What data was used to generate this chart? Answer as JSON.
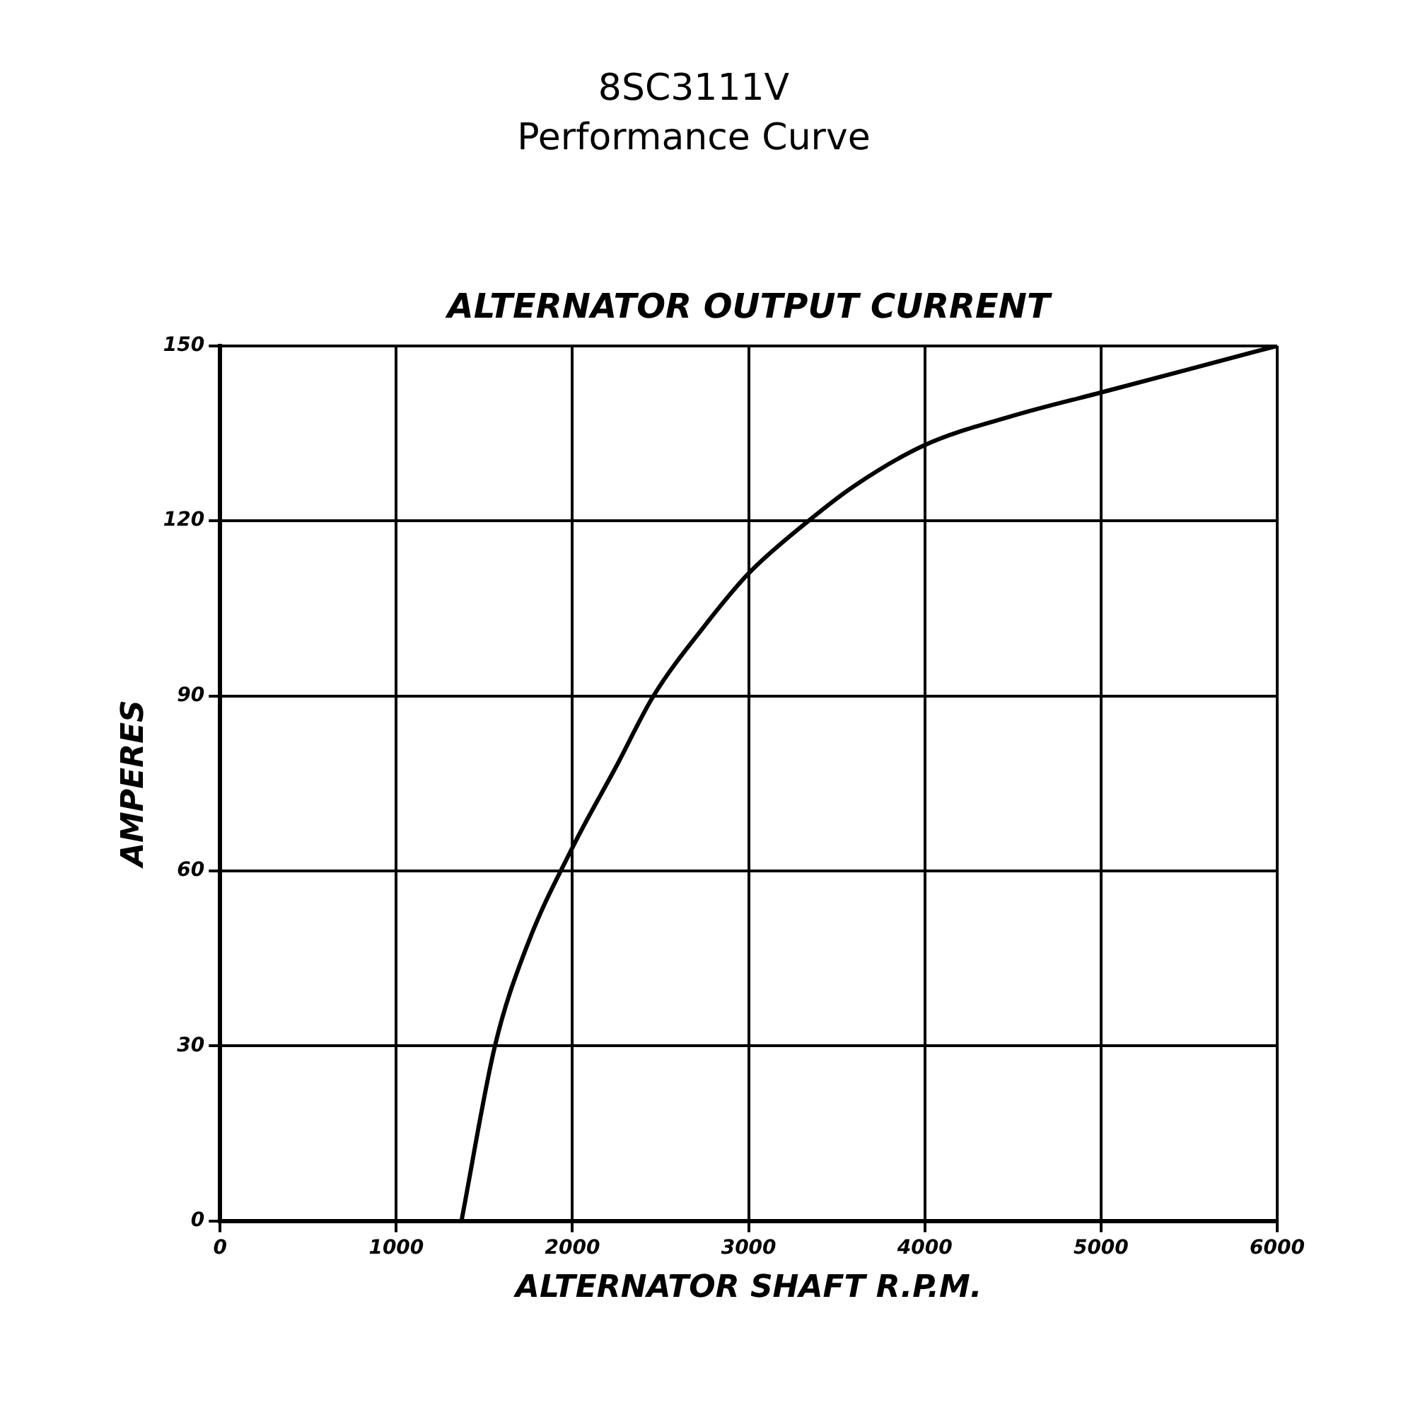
{
  "chart_data": {
    "type": "line",
    "title": "8SC3111V",
    "subtitle": "Performance Curve",
    "annotations": [
      "ALTERNATOR OUTPUT CURRENT"
    ],
    "xlabel": "ALTERNATOR SHAFT R.P.M.",
    "ylabel": "AMPERES",
    "x": [
      1370,
      1560,
      1740,
      2000,
      2250,
      2460,
      2750,
      3000,
      3340,
      3600,
      4000,
      4500,
      5000,
      5500,
      6000
    ],
    "series": [
      {
        "color": "#000000",
        "values": [
          0,
          30,
          47,
          64,
          78,
          90,
          102,
          111,
          120,
          126,
          133,
          138,
          142,
          146,
          150
        ]
      }
    ],
    "xlim": [
      0,
      6000
    ],
    "xticks": [
      0,
      1000,
      2000,
      3000,
      4000,
      5000,
      6000
    ],
    "ylim": [
      0,
      150
    ],
    "yticks": [
      0,
      30,
      60,
      90,
      120,
      150
    ],
    "grid": true,
    "legend": false,
    "marker": "none",
    "line_style": "solid"
  }
}
